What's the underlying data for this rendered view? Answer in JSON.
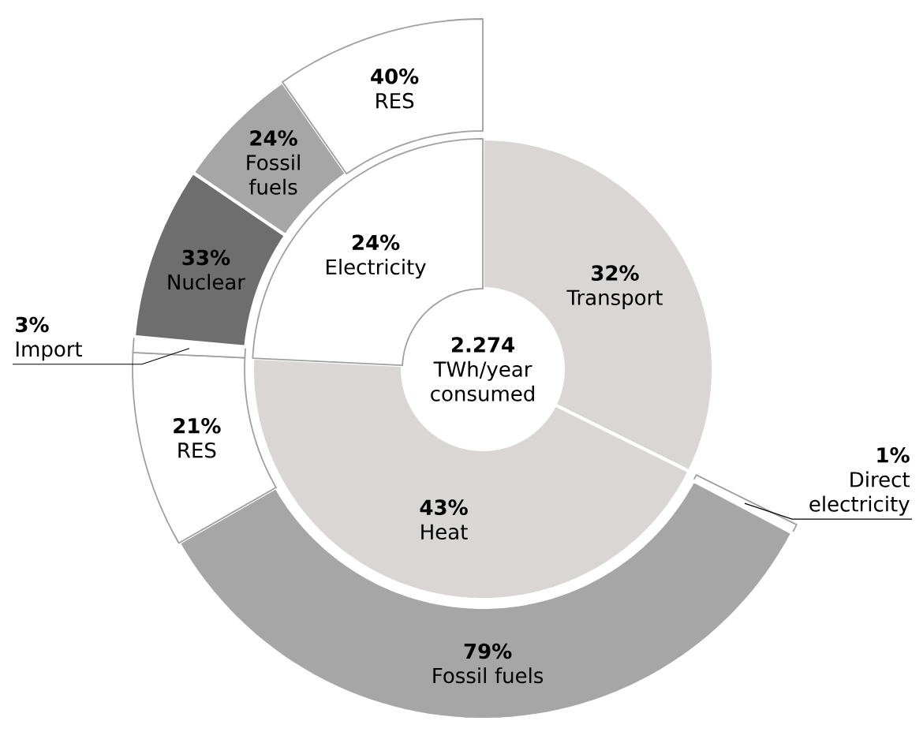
{
  "chart_data": [
    {
      "type": "donut",
      "categories": [
        "Transport",
        "Heat",
        "Electricity"
      ],
      "values": [
        32,
        43,
        24
      ],
      "value_labels": [
        "32%",
        "43%",
        "24%"
      ],
      "colors": [
        "#d9d6d5",
        "#d9d6d5",
        "#ffffff"
      ],
      "annotations": [
        "**2.274** TWh/year consumed"
      ]
    },
    {
      "type": "donut",
      "categories": [
        "Direct electricity",
        "Fossil fuels",
        "RES"
      ],
      "values": [
        1,
        79,
        21
      ],
      "value_labels": [
        "1%",
        "79%",
        "21%"
      ],
      "colors": [
        "#ffffff",
        "#a6a6a6",
        "#ffffff"
      ]
    },
    {
      "type": "donut",
      "categories": [
        "Import",
        "Nuclear",
        "Fossil fuels",
        "RES"
      ],
      "values": [
        3,
        33,
        24,
        40
      ],
      "value_labels": [
        "3%",
        "33%",
        "24%",
        "40%"
      ],
      "colors": [
        "#ffffff",
        "#6e6e6e",
        "#a6a6a6",
        "#ffffff"
      ]
    }
  ]
}
